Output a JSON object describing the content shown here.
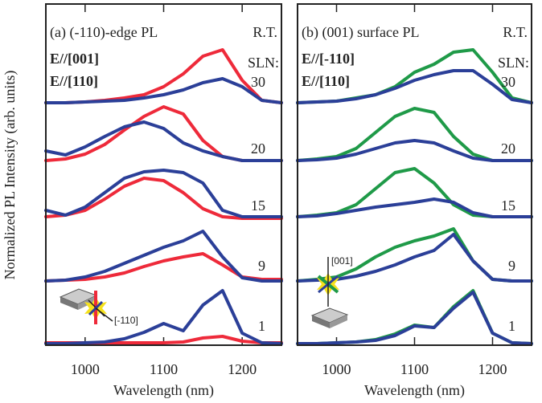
{
  "chart_data": [
    {
      "type": "line",
      "title": "(a) (-110)-edge PL",
      "annotation": "R.T.",
      "sln_title": "SLN:",
      "ylabel": "Normalized PL Intensity (arb. units)",
      "xlabel": "Wavelength (nm)",
      "inset_label": "[-110]",
      "x": [
        950,
        975,
        1000,
        1025,
        1050,
        1075,
        1100,
        1125,
        1150,
        1175,
        1200,
        1225,
        1250
      ],
      "xlim": [
        950,
        1250
      ],
      "xticks": [
        1000,
        1100,
        1200
      ],
      "ylim": [
        0,
        425
      ],
      "sln_labels": [
        "30",
        "20",
        "15",
        "9",
        "1"
      ],
      "series": [
        {
          "name": "E//[001]",
          "color": "#ee2a3a",
          "values": [
            [
              302,
              302,
              303,
              305,
              308,
              312,
              322,
              338,
              360,
              368,
              330,
              305,
              302
            ],
            [
              230,
              232,
              238,
              250,
              268,
              285,
              297,
              288,
              255,
              235,
              230,
              230,
              230
            ],
            [
              160,
              162,
              168,
              182,
              198,
              208,
              205,
              190,
              170,
              160,
              158,
              158,
              158
            ],
            [
              80,
              81,
              82,
              85,
              90,
              98,
              105,
              110,
              114,
              100,
              85,
              82,
              82
            ],
            [
              3,
              3,
              3,
              3,
              3,
              3,
              3,
              4,
              9,
              11,
              5,
              3,
              3
            ]
          ]
        },
        {
          "name": "E//[110]",
          "color": "#2b3f98",
          "values": [
            [
              302,
              302,
              303,
              304,
              305,
              308,
              312,
              318,
              327,
              332,
              322,
              305,
              302
            ],
            [
              242,
              237,
              247,
              260,
              272,
              278,
              270,
              252,
              242,
              235,
              230,
              230,
              230
            ],
            [
              168,
              162,
              172,
              190,
              208,
              216,
              218,
              215,
              202,
              168,
              160,
              160,
              160
            ],
            [
              80,
              81,
              85,
              92,
              102,
              112,
              122,
              130,
              142,
              110,
              84,
              80,
              80
            ],
            [
              2,
              2,
              3,
              4,
              8,
              16,
              27,
              18,
              50,
              68,
              15,
              3,
              2
            ]
          ]
        }
      ]
    },
    {
      "type": "line",
      "title": "(b) (001) surface PL",
      "annotation": "R.T.",
      "sln_title": "SLN:",
      "xlabel": "Wavelength (nm)",
      "inset_label": "[001]",
      "x": [
        950,
        975,
        1000,
        1025,
        1050,
        1075,
        1100,
        1125,
        1150,
        1175,
        1200,
        1225,
        1250
      ],
      "xlim": [
        950,
        1250
      ],
      "xticks": [
        1000,
        1100,
        1200
      ],
      "ylim": [
        0,
        425
      ],
      "sln_labels": [
        "30",
        "20",
        "15",
        "9",
        "1"
      ],
      "series": [
        {
          "name": "E//[-110]",
          "color": "#1f9a48",
          "values": [
            [
              302,
              303,
              304,
              308,
              312,
              322,
              340,
              350,
              365,
              368,
              340,
              308,
              302
            ],
            [
              230,
              232,
              235,
              245,
              265,
              285,
              295,
              290,
              260,
              238,
              230,
              230,
              230
            ],
            [
              160,
              162,
              165,
              175,
              195,
              215,
              220,
              202,
              175,
              162,
              160,
              160,
              160
            ],
            [
              80,
              82,
              85,
              95,
              110,
              122,
              130,
              136,
              145,
              105,
              82,
              80,
              80
            ],
            [
              2,
              2,
              3,
              4,
              7,
              14,
              25,
              22,
              48,
              68,
              15,
              3,
              2
            ]
          ]
        },
        {
          "name": "E//[110]",
          "color": "#2b3f98",
          "values": [
            [
              302,
              303,
              304,
              307,
              312,
              320,
              330,
              337,
              342,
              342,
              325,
              306,
              302
            ],
            [
              230,
              231,
              233,
              238,
              245,
              252,
              255,
              252,
              242,
              233,
              230,
              230,
              230
            ],
            [
              160,
              161,
              164,
              168,
              172,
              175,
              178,
              182,
              178,
              165,
              160,
              160,
              160
            ],
            [
              80,
              81,
              82,
              86,
              92,
              100,
              110,
              118,
              138,
              105,
              82,
              80,
              80
            ],
            [
              2,
              2,
              3,
              4,
              6,
              12,
              24,
              22,
              46,
              66,
              15,
              3,
              2
            ]
          ]
        }
      ]
    }
  ]
}
